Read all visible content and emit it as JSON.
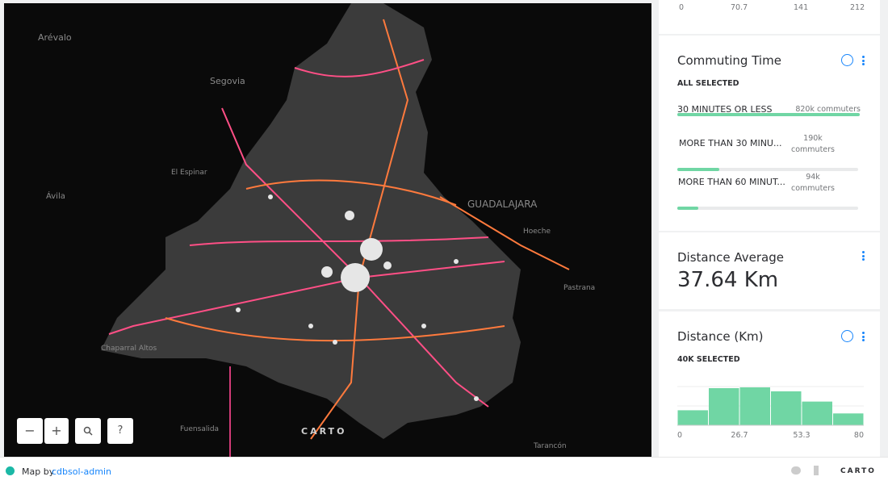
{
  "map": {
    "labels": [
      "Arévalo",
      "Segovia",
      "El Espinar",
      "Ávila",
      "GUADALAJARA",
      "Hoeche",
      "Pastrana",
      "Fuensalida",
      "Tarancón",
      "Chaparral Altos"
    ],
    "attribution": "CARTO",
    "controls": [
      "−",
      "+",
      "?"
    ]
  },
  "sidebar": {
    "top_widget": {
      "ticks": [
        "0",
        "70.7",
        "141",
        "212"
      ]
    },
    "commuting_time": {
      "title": "Commuting Time",
      "status": "ALL SELECTED",
      "categories": [
        {
          "name": "30 MINUTES OR LESS",
          "value": 820000,
          "value_label": "820k commuters"
        },
        {
          "name": "MORE THAN 30 MINU...",
          "value": 190000,
          "value_label": "190k commuters"
        },
        {
          "name": "MORE THAN 60 MINUT...",
          "value": 94000,
          "value_label": "94k commuters"
        }
      ]
    },
    "distance_average": {
      "title": "Distance Average",
      "value": "37.64 Km"
    },
    "distance_histogram": {
      "type": "histogram",
      "title": "Distance (Km)",
      "status": "40K SELECTED",
      "bins": [
        0,
        13.33,
        26.67,
        40,
        53.33,
        66.67,
        80
      ],
      "counts": [
        19,
        47,
        48,
        43,
        30,
        15
      ],
      "xlim": [
        0,
        80
      ],
      "xticks": [
        0,
        {
          "value": 26.67,
          "label": "26.7"
        },
        {
          "value": 53.33,
          "label": "53.3"
        },
        80
      ],
      "color": "#70d6a4"
    }
  },
  "footer": {
    "prefix": "Map by",
    "user": "cdbsol-admin",
    "brand": "CARTO"
  }
}
